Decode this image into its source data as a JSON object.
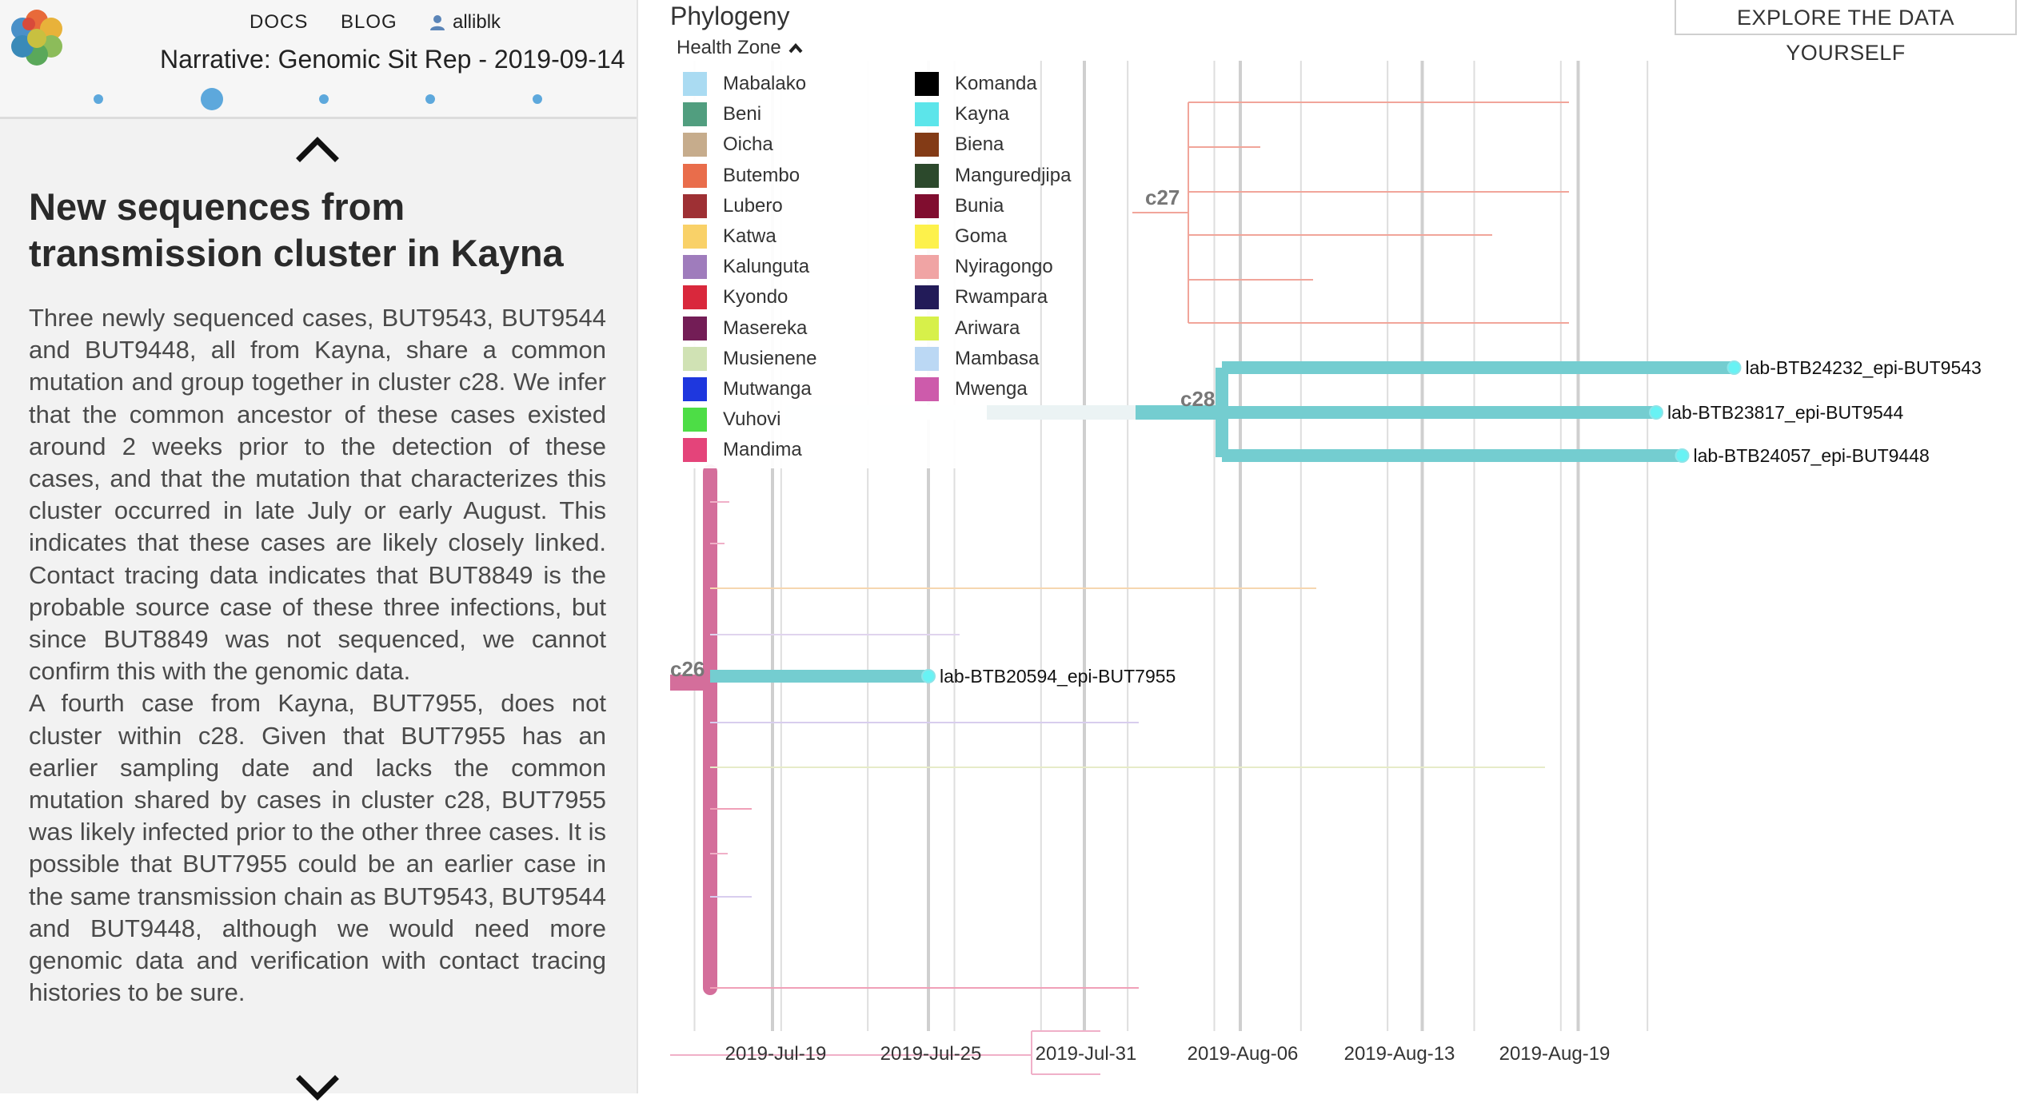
{
  "nav": {
    "docs": "DOCS",
    "blog": "BLOG",
    "user": "alliblk",
    "narrative_title": "Narrative: Genomic Sit Rep - 2019-09-14"
  },
  "section": {
    "heading": "New sequences from transmission cluster in Kayna",
    "paragraph1": "Three newly sequenced cases, BUT9543, BUT9544 and BUT9448, all from Kayna, share a common mutation and group together in cluster c28. We infer that the common ancestor of these cases existed around 2 weeks prior to the detection of these cases, and that the mutation that characterizes this cluster occurred in late July or early August. This indicates that these cases are likely closely linked. Contact tracing data indicates that BUT8849 is the probable source case of these three infections, but since BUT8849 was not sequenced, we cannot confirm this with the genomic data.",
    "paragraph2": "A fourth case from Kayna, BUT7955, does not cluster within c28. Given that BUT7955 has an earlier sampling date and lacks the common mutation shared by cases in cluster c28, BUT7955 was likely infected prior to the other three cases. It is possible that BUT7955 could be an earlier case in the same transmission chain as BUT9543, BUT9544 and BUT9448, although we would need more genomic data and verification with contact tracing histories to be sure."
  },
  "progress": {
    "total_steps": 5,
    "current_step": 2
  },
  "panel": {
    "title": "Phylogeny",
    "explore_button": "EXPLORE THE DATA YOURSELF",
    "legend_title": "Health Zone",
    "legend": [
      {
        "label": "Mabalako",
        "color": "#a6dcf5"
      },
      {
        "label": "Beni",
        "color": "#4aa07e"
      },
      {
        "label": "Oicha",
        "color": "#c9ac88"
      },
      {
        "label": "Butembo",
        "color": "#f46a45"
      },
      {
        "label": "Lubero",
        "color": "#a82d32"
      },
      {
        "label": "Katwa",
        "color": "#fdd15c"
      },
      {
        "label": "Kalunguta",
        "color": "#a27bc2"
      },
      {
        "label": "Kyondo",
        "color": "#e8243a"
      },
      {
        "label": "Masereka",
        "color": "#7a1a5a"
      },
      {
        "label": "Musienene",
        "color": "#cfe3b0"
      },
      {
        "label": "Mutwanga",
        "color": "#1a36f0"
      },
      {
        "label": "Vuhovi",
        "color": "#42e23a"
      },
      {
        "label": "Mandima",
        "color": "#f2407c"
      },
      {
        "label": "Komanda",
        "color": "#000000"
      },
      {
        "label": "Kayna",
        "color": "#50e8ee"
      },
      {
        "label": "Biena",
        "color": "#8a3a10"
      },
      {
        "label": "Manguredjipa",
        "color": "#2a4a2a"
      },
      {
        "label": "Bunia",
        "color": "#8a0a30"
      },
      {
        "label": "Goma",
        "color": "#fff23a"
      },
      {
        "label": "Nyiragongo",
        "color": "#f7a2a2"
      },
      {
        "label": "Rwampara",
        "color": "#221a5e"
      },
      {
        "label": "Ariwara",
        "color": "#d6f23a"
      },
      {
        "label": "Mambasa",
        "color": "#b8d8f8"
      },
      {
        "label": "Mwenga",
        "color": "#d658b0"
      }
    ],
    "clades": [
      "c27",
      "c28",
      "c26"
    ],
    "tips": [
      {
        "name": "lab-BTB24232_epi-BUT9543",
        "date": "2019-08-25",
        "zone": "Kayna"
      },
      {
        "name": "lab-BTB23817_epi-BUT9544",
        "date": "2019-08-22",
        "zone": "Kayna"
      },
      {
        "name": "lab-BTB24057_epi-BUT9448",
        "date": "2019-08-23",
        "zone": "Kayna"
      },
      {
        "name": "lab-BTB20594_epi-BUT7955",
        "date": "2019-07-25",
        "zone": "Kayna"
      }
    ],
    "axis_ticks": [
      "2019-Jul-19",
      "2019-Jul-25",
      "2019-Jul-31",
      "2019-Aug-06",
      "2019-Aug-13",
      "2019-Aug-19"
    ]
  }
}
